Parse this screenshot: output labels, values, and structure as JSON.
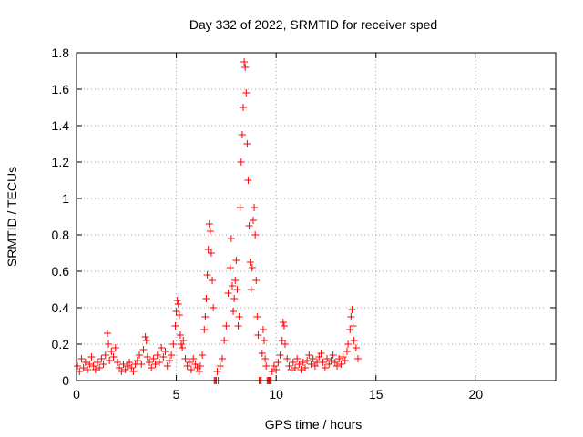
{
  "chart_data": {
    "type": "scatter",
    "title": "Day 332 of 2022, SRMTID for receiver sped",
    "xlabel": "GPS time / hours",
    "ylabel": "SRMTID / TECUs",
    "xlim": [
      0,
      24
    ],
    "ylim": [
      0,
      1.8
    ],
    "xticks": [
      0,
      5,
      10,
      15,
      20
    ],
    "xtick_labels": [
      "0",
      "5",
      "10",
      "15",
      "20"
    ],
    "yticks": [
      0,
      0.2,
      0.4,
      0.6,
      0.8,
      1.0,
      1.2,
      1.4,
      1.6,
      1.8
    ],
    "ytick_labels": [
      "0",
      "0.2",
      "0.4",
      "0.6",
      "0.8",
      "1",
      "1.2",
      "1.4",
      "1.6",
      "1.8"
    ],
    "grid": true,
    "marker": "+",
    "color": "#ff0000",
    "series": [
      {
        "name": "SRMTID",
        "points": [
          [
            0.05,
            0.08
          ],
          [
            0.15,
            0.05
          ],
          [
            0.25,
            0.12
          ],
          [
            0.35,
            0.07
          ],
          [
            0.45,
            0.1
          ],
          [
            0.55,
            0.06
          ],
          [
            0.65,
            0.09
          ],
          [
            0.75,
            0.13
          ],
          [
            0.85,
            0.08
          ],
          [
            0.95,
            0.06
          ],
          [
            1.05,
            0.1
          ],
          [
            1.15,
            0.07
          ],
          [
            1.25,
            0.12
          ],
          [
            1.35,
            0.09
          ],
          [
            1.45,
            0.14
          ],
          [
            1.55,
            0.26
          ],
          [
            1.6,
            0.2
          ],
          [
            1.65,
            0.11
          ],
          [
            1.75,
            0.16
          ],
          [
            1.85,
            0.13
          ],
          [
            1.95,
            0.18
          ],
          [
            2.05,
            0.1
          ],
          [
            2.15,
            0.07
          ],
          [
            2.25,
            0.05
          ],
          [
            2.35,
            0.09
          ],
          [
            2.45,
            0.06
          ],
          [
            2.55,
            0.08
          ],
          [
            2.65,
            0.1
          ],
          [
            2.75,
            0.07
          ],
          [
            2.85,
            0.05
          ],
          [
            2.95,
            0.09
          ],
          [
            3.05,
            0.11
          ],
          [
            3.15,
            0.14
          ],
          [
            3.25,
            0.09
          ],
          [
            3.35,
            0.17
          ],
          [
            3.45,
            0.24
          ],
          [
            3.5,
            0.22
          ],
          [
            3.55,
            0.13
          ],
          [
            3.65,
            0.1
          ],
          [
            3.75,
            0.07
          ],
          [
            3.85,
            0.12
          ],
          [
            3.95,
            0.09
          ],
          [
            4.05,
            0.14
          ],
          [
            4.15,
            0.1
          ],
          [
            4.25,
            0.18
          ],
          [
            4.35,
            0.13
          ],
          [
            4.45,
            0.16
          ],
          [
            4.55,
            0.08
          ],
          [
            4.65,
            0.11
          ],
          [
            4.75,
            0.14
          ],
          [
            4.85,
            0.2
          ],
          [
            4.95,
            0.3
          ],
          [
            5.0,
            0.38
          ],
          [
            5.05,
            0.44
          ],
          [
            5.1,
            0.42
          ],
          [
            5.15,
            0.36
          ],
          [
            5.2,
            0.25
          ],
          [
            5.25,
            0.2
          ],
          [
            5.3,
            0.18
          ],
          [
            5.35,
            0.22
          ],
          [
            5.45,
            0.12
          ],
          [
            5.55,
            0.08
          ],
          [
            5.65,
            0.1
          ],
          [
            5.75,
            0.06
          ],
          [
            5.85,
            0.12
          ],
          [
            5.95,
            0.09
          ],
          [
            6.05,
            0.07
          ],
          [
            6.15,
            0.05
          ],
          [
            6.2,
            0.08
          ],
          [
            6.3,
            0.14
          ],
          [
            6.4,
            0.28
          ],
          [
            6.45,
            0.35
          ],
          [
            6.5,
            0.45
          ],
          [
            6.55,
            0.58
          ],
          [
            6.6,
            0.72
          ],
          [
            6.65,
            0.86
          ],
          [
            6.7,
            0.82
          ],
          [
            6.75,
            0.7
          ],
          [
            6.8,
            0.55
          ],
          [
            6.85,
            0.4
          ],
          [
            6.9,
            0.0
          ],
          [
            6.95,
            0.0
          ],
          [
            7.0,
            0.0
          ],
          [
            7.05,
            0.05
          ],
          [
            7.1,
            0.0
          ],
          [
            7.2,
            0.08
          ],
          [
            7.3,
            0.12
          ],
          [
            7.4,
            0.22
          ],
          [
            7.5,
            0.3
          ],
          [
            7.6,
            0.48
          ],
          [
            7.7,
            0.62
          ],
          [
            7.75,
            0.78
          ],
          [
            7.8,
            0.52
          ],
          [
            7.85,
            0.38
          ],
          [
            7.9,
            0.45
          ],
          [
            7.95,
            0.55
          ],
          [
            8.0,
            0.66
          ],
          [
            8.05,
            0.5
          ],
          [
            8.1,
            0.3
          ],
          [
            8.15,
            0.35
          ],
          [
            8.2,
            0.95
          ],
          [
            8.25,
            1.2
          ],
          [
            8.3,
            1.35
          ],
          [
            8.35,
            1.5
          ],
          [
            8.4,
            1.75
          ],
          [
            8.45,
            1.72
          ],
          [
            8.5,
            1.58
          ],
          [
            8.55,
            1.3
          ],
          [
            8.6,
            1.1
          ],
          [
            8.65,
            0.85
          ],
          [
            8.7,
            0.65
          ],
          [
            8.75,
            0.5
          ],
          [
            8.8,
            0.62
          ],
          [
            8.85,
            0.88
          ],
          [
            8.9,
            0.95
          ],
          [
            8.95,
            0.8
          ],
          [
            9.0,
            0.55
          ],
          [
            9.05,
            0.35
          ],
          [
            9.1,
            0.25
          ],
          [
            9.15,
            0.0
          ],
          [
            9.2,
            0.0
          ],
          [
            9.25,
            0.0
          ],
          [
            9.3,
            0.15
          ],
          [
            9.35,
            0.28
          ],
          [
            9.4,
            0.22
          ],
          [
            9.45,
            0.12
          ],
          [
            9.5,
            0.08
          ],
          [
            9.55,
            0.0
          ],
          [
            9.6,
            0.0
          ],
          [
            9.65,
            0.0
          ],
          [
            9.7,
            0.0
          ],
          [
            9.75,
            0.0
          ],
          [
            9.8,
            0.05
          ],
          [
            9.9,
            0.08
          ],
          [
            10.0,
            0.06
          ],
          [
            10.1,
            0.1
          ],
          [
            10.2,
            0.14
          ],
          [
            10.3,
            0.22
          ],
          [
            10.35,
            0.32
          ],
          [
            10.4,
            0.3
          ],
          [
            10.45,
            0.2
          ],
          [
            10.55,
            0.12
          ],
          [
            10.65,
            0.08
          ],
          [
            10.75,
            0.06
          ],
          [
            10.85,
            0.1
          ],
          [
            10.95,
            0.07
          ],
          [
            11.05,
            0.12
          ],
          [
            11.15,
            0.09
          ],
          [
            11.25,
            0.06
          ],
          [
            11.35,
            0.1
          ],
          [
            11.45,
            0.07
          ],
          [
            11.55,
            0.11
          ],
          [
            11.65,
            0.14
          ],
          [
            11.75,
            0.09
          ],
          [
            11.85,
            0.12
          ],
          [
            11.95,
            0.08
          ],
          [
            12.05,
            0.1
          ],
          [
            12.15,
            0.13
          ],
          [
            12.25,
            0.15
          ],
          [
            12.35,
            0.1
          ],
          [
            12.45,
            0.07
          ],
          [
            12.55,
            0.12
          ],
          [
            12.65,
            0.09
          ],
          [
            12.75,
            0.11
          ],
          [
            12.85,
            0.14
          ],
          [
            12.95,
            0.1
          ],
          [
            13.05,
            0.08
          ],
          [
            13.15,
            0.12
          ],
          [
            13.25,
            0.09
          ],
          [
            13.35,
            0.13
          ],
          [
            13.45,
            0.11
          ],
          [
            13.55,
            0.16
          ],
          [
            13.6,
            0.2
          ],
          [
            13.7,
            0.28
          ],
          [
            13.75,
            0.35
          ],
          [
            13.8,
            0.39
          ],
          [
            13.85,
            0.3
          ],
          [
            13.9,
            0.22
          ],
          [
            14.0,
            0.18
          ],
          [
            14.1,
            0.12
          ]
        ]
      }
    ]
  }
}
